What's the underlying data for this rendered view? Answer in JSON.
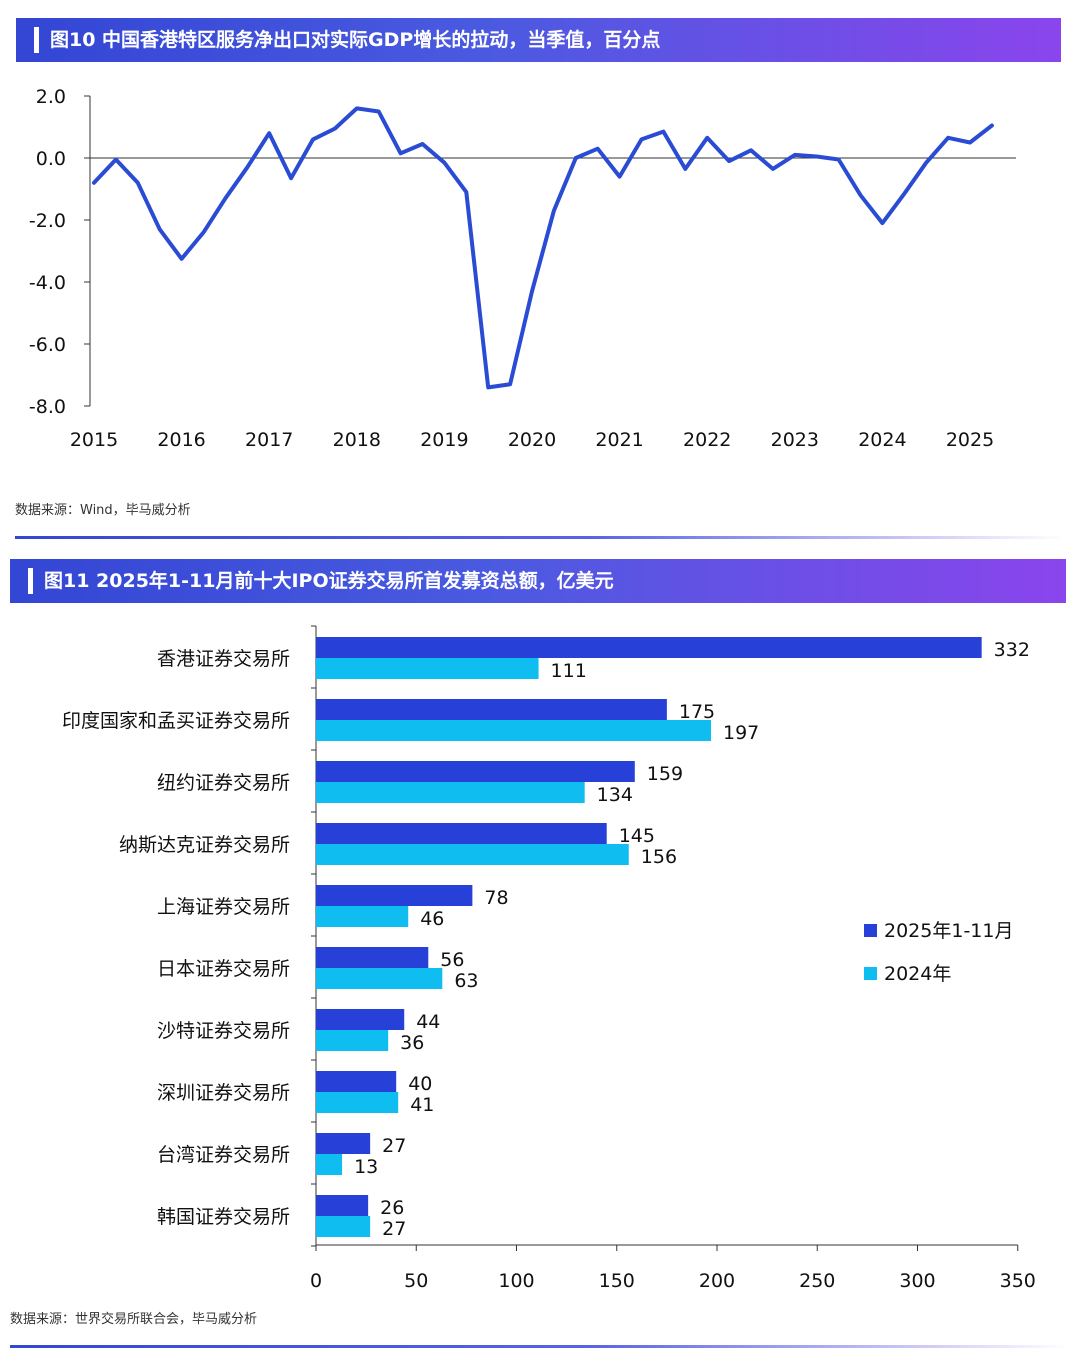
{
  "colors": {
    "series_2025": "#2741d8",
    "series_2024": "#10bdf0",
    "line": "#2a4bd3",
    "axis": "#333333"
  },
  "header1": {
    "title": "图10 中国香港特区服务净出口对实际GDP增长的拉动，当季值，百分点"
  },
  "source1": "数据来源：Wind，毕马威分析",
  "header2": {
    "title": "图11 2025年1-11月前十大IPO证券交易所首发募资总额，亿美元"
  },
  "source2": "数据来源：世界交易所联合会，毕马威分析",
  "chart_data": [
    {
      "type": "line",
      "title": "图10 中国香港特区服务净出口对实际GDP增长的拉动，当季值，百分点",
      "ylim": [
        -8.0,
        2.0
      ],
      "yticks": [
        2.0,
        0.0,
        -2.0,
        -4.0,
        -6.0,
        -8.0
      ],
      "ytick_labels": [
        "2.0",
        "0.0",
        "-2.0",
        "-4.0",
        "-6.0",
        "-8.0"
      ],
      "xticks": [
        "2015",
        "2016",
        "2017",
        "2018",
        "2019",
        "2020",
        "2021",
        "2022",
        "2023",
        "2024",
        "2025"
      ],
      "x_start": 2015.0,
      "x_step": 0.25,
      "values": [
        -0.8,
        -0.05,
        -0.8,
        -2.3,
        -3.25,
        -2.4,
        -1.3,
        -0.3,
        0.8,
        -0.65,
        0.6,
        0.95,
        1.6,
        1.5,
        0.15,
        0.45,
        -0.15,
        -1.1,
        -7.4,
        -7.3,
        -4.3,
        -1.7,
        0.0,
        0.3,
        -0.6,
        0.6,
        0.85,
        -0.35,
        0.65,
        -0.1,
        0.25,
        -0.35,
        0.1,
        0.05,
        -0.05,
        -1.2,
        -2.1,
        -1.15,
        -0.15,
        0.65,
        0.5,
        1.05
      ],
      "xlabel": "",
      "ylabel": ""
    },
    {
      "type": "bar",
      "orientation": "horizontal",
      "title": "图11 2025年1-11月前十大IPO证券交易所首发募资总额，亿美元",
      "categories": [
        "香港证券交易所",
        "印度国家和孟买证券交易所",
        "纽约证券交易所",
        "纳斯达克证券交易所",
        "上海证券交易所",
        "日本证券交易所",
        "沙特证券交易所",
        "深圳证券交易所",
        "台湾证券交易所",
        "韩国证券交易所"
      ],
      "series": [
        {
          "name": "2025年1-11月",
          "values": [
            332,
            175,
            159,
            145,
            78,
            56,
            44,
            40,
            27,
            26
          ]
        },
        {
          "name": "2024年",
          "values": [
            111,
            197,
            134,
            156,
            46,
            63,
            36,
            41,
            13,
            27
          ]
        }
      ],
      "xlim": [
        0,
        350
      ],
      "xticks": [
        0,
        50,
        100,
        150,
        200,
        250,
        300,
        350
      ],
      "legend_position": "right",
      "xlabel": "",
      "ylabel": ""
    }
  ]
}
